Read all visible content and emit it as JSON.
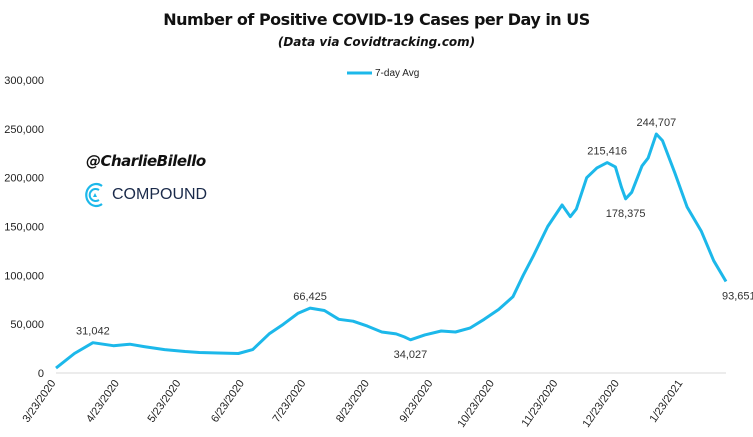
{
  "chart_data": {
    "type": "line",
    "title": "Number of Positive COVID-19 Cases per Day in US",
    "subtitle": "(Data via Covidtracking.com)",
    "legend": {
      "entries": [
        "7-day Avg"
      ],
      "placement": "top"
    },
    "ylim": [
      0,
      300000
    ],
    "yticks": [
      0,
      50000,
      100000,
      150000,
      200000,
      250000,
      300000
    ],
    "ytick_labels": [
      "0",
      "50,000",
      "100,000",
      "150,000",
      "200,000",
      "250,000",
      "300,000"
    ],
    "xticks": [
      "3/23/2020",
      "4/23/2020",
      "5/23/2020",
      "6/23/2020",
      "7/23/2020",
      "8/23/2020",
      "9/23/2020",
      "10/23/2020",
      "11/23/2020",
      "12/23/2020",
      "1/23/2021"
    ],
    "xlim": [
      "2020-03-23",
      "2021-02-13"
    ],
    "grid": false,
    "color": "#1cb8ea",
    "series": [
      {
        "name": "7-day Avg",
        "points": [
          [
            "2020-03-23",
            5000
          ],
          [
            "2020-04-01",
            20000
          ],
          [
            "2020-04-10",
            31042
          ],
          [
            "2020-04-20",
            28000
          ],
          [
            "2020-04-28",
            29500
          ],
          [
            "2020-05-05",
            27000
          ],
          [
            "2020-05-15",
            24000
          ],
          [
            "2020-05-25",
            22000
          ],
          [
            "2020-06-01",
            21000
          ],
          [
            "2020-06-10",
            20500
          ],
          [
            "2020-06-20",
            20000
          ],
          [
            "2020-06-27",
            24000
          ],
          [
            "2020-07-05",
            40000
          ],
          [
            "2020-07-12",
            50000
          ],
          [
            "2020-07-19",
            61000
          ],
          [
            "2020-07-25",
            66425
          ],
          [
            "2020-08-01",
            64000
          ],
          [
            "2020-08-08",
            55000
          ],
          [
            "2020-08-15",
            53000
          ],
          [
            "2020-08-22",
            48000
          ],
          [
            "2020-08-29",
            42000
          ],
          [
            "2020-09-05",
            40000
          ],
          [
            "2020-09-09",
            37000
          ],
          [
            "2020-09-12",
            34027
          ],
          [
            "2020-09-19",
            39000
          ],
          [
            "2020-09-27",
            43000
          ],
          [
            "2020-10-04",
            42000
          ],
          [
            "2020-10-11",
            46000
          ],
          [
            "2020-10-18",
            55000
          ],
          [
            "2020-10-25",
            65000
          ],
          [
            "2020-11-01",
            78000
          ],
          [
            "2020-11-06",
            100000
          ],
          [
            "2020-11-11",
            120000
          ],
          [
            "2020-11-18",
            150000
          ],
          [
            "2020-11-25",
            172000
          ],
          [
            "2020-11-29",
            160000
          ],
          [
            "2020-12-02",
            168000
          ],
          [
            "2020-12-07",
            200000
          ],
          [
            "2020-12-12",
            210000
          ],
          [
            "2020-12-17",
            215416
          ],
          [
            "2020-12-21",
            211000
          ],
          [
            "2020-12-24",
            190000
          ],
          [
            "2020-12-26",
            178375
          ],
          [
            "2020-12-29",
            185000
          ],
          [
            "2021-01-03",
            212000
          ],
          [
            "2021-01-06",
            220000
          ],
          [
            "2021-01-10",
            244707
          ],
          [
            "2021-01-13",
            238000
          ],
          [
            "2021-01-19",
            205000
          ],
          [
            "2021-01-25",
            170000
          ],
          [
            "2021-02-01",
            145000
          ],
          [
            "2021-02-07",
            115000
          ],
          [
            "2021-02-13",
            93651
          ]
        ]
      }
    ],
    "annotations": [
      {
        "date": "2020-04-10",
        "value": 31042,
        "label": "31,042",
        "pos": "above"
      },
      {
        "date": "2020-07-25",
        "value": 66425,
        "label": "66,425",
        "pos": "above"
      },
      {
        "date": "2020-09-12",
        "value": 34027,
        "label": "34,027",
        "pos": "below"
      },
      {
        "date": "2020-12-17",
        "value": 215416,
        "label": "215,416",
        "pos": "above"
      },
      {
        "date": "2020-12-26",
        "value": 178375,
        "label": "178,375",
        "pos": "below"
      },
      {
        "date": "2021-01-10",
        "value": 244707,
        "label": "244,707",
        "pos": "above"
      },
      {
        "date": "2021-02-13",
        "value": 93651,
        "label": "93,651",
        "pos": "below"
      }
    ]
  },
  "watermark": {
    "handle": "@CharlieBilello",
    "brand": "COMPOUND"
  }
}
